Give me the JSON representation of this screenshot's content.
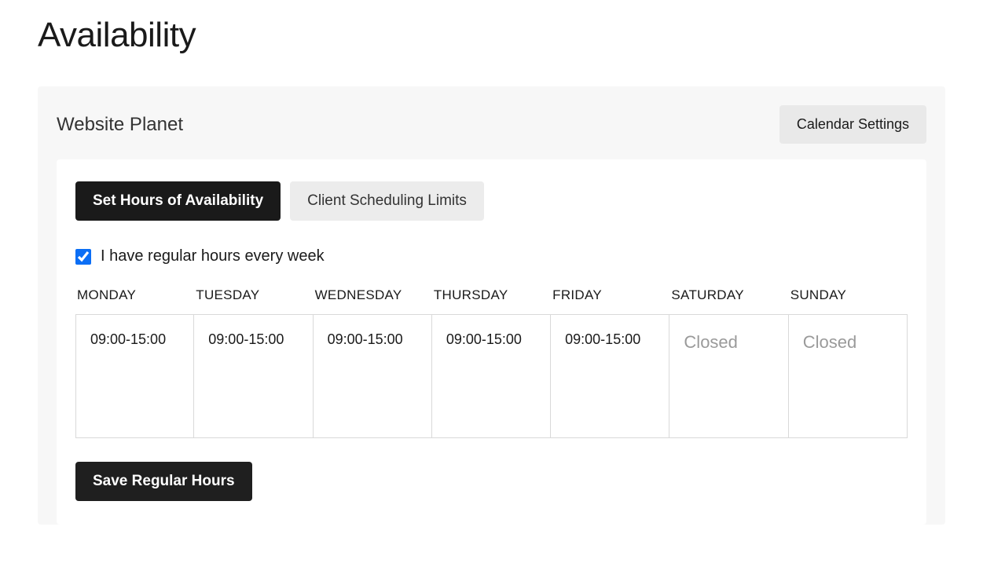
{
  "page": {
    "title": "Availability"
  },
  "panel": {
    "title": "Website Planet",
    "calendar_settings_label": "Calendar Settings"
  },
  "tabs": {
    "set_hours": "Set Hours of Availability",
    "client_limits": "Client Scheduling Limits"
  },
  "regular_hours": {
    "checkbox_checked": true,
    "checkbox_label": "I have regular hours every week",
    "save_label": "Save Regular Hours"
  },
  "schedule": {
    "days": [
      {
        "name": "MONDAY",
        "hours": "09:00-15:00",
        "closed": false
      },
      {
        "name": "TUESDAY",
        "hours": "09:00-15:00",
        "closed": false
      },
      {
        "name": "WEDNESDAY",
        "hours": "09:00-15:00",
        "closed": false
      },
      {
        "name": "THURSDAY",
        "hours": "09:00-15:00",
        "closed": false
      },
      {
        "name": "FRIDAY",
        "hours": "09:00-15:00",
        "closed": false
      },
      {
        "name": "SATURDAY",
        "hours": "Closed",
        "closed": true
      },
      {
        "name": "SUNDAY",
        "hours": "Closed",
        "closed": true
      }
    ]
  },
  "colors": {
    "page_bg": "#ffffff",
    "panel_bg": "#f7f7f7",
    "card_bg": "#ffffff",
    "text_primary": "#1a1a1a",
    "text_muted": "#9a9a9a",
    "border": "#d9d9d9",
    "tab_active_bg": "#1a1a1a",
    "tab_inactive_bg": "#ececec",
    "button_secondary_bg": "#e9e9e9",
    "button_primary_bg": "#1f1f1f",
    "checkbox_accent": "#0b6ef5"
  }
}
